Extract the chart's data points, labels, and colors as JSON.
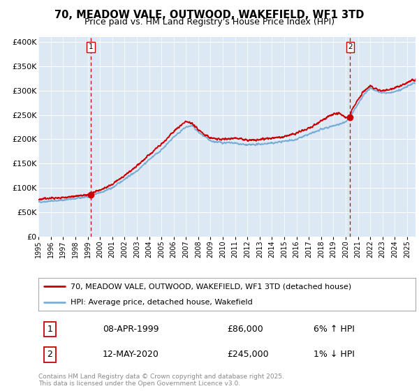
{
  "title": "70, MEADOW VALE, OUTWOOD, WAKEFIELD, WF1 3TD",
  "subtitle": "Price paid vs. HM Land Registry's House Price Index (HPI)",
  "title_fontsize": 10.5,
  "subtitle_fontsize": 9,
  "bg_color": "#dce9f5",
  "red_line_color": "#cc0000",
  "blue_line_color": "#7aadd4",
  "marker_color": "#cc0000",
  "vline_color": "#cc0000",
  "box_edge_color": "#cc0000",
  "legend_line1": "70, MEADOW VALE, OUTWOOD, WAKEFIELD, WF1 3TD (detached house)",
  "legend_line2": "HPI: Average price, detached house, Wakefield",
  "sale1_date": "08-APR-1999",
  "sale1_price": "£86,000",
  "sale1_hpi": "6% ↑ HPI",
  "sale2_date": "12-MAY-2020",
  "sale2_price": "£245,000",
  "sale2_hpi": "1% ↓ HPI",
  "footer": "Contains HM Land Registry data © Crown copyright and database right 2025.\nThis data is licensed under the Open Government Licence v3.0.",
  "ylim": [
    0,
    410000
  ],
  "yticks": [
    0,
    50000,
    100000,
    150000,
    200000,
    250000,
    300000,
    350000,
    400000
  ],
  "ytick_labels": [
    "£0",
    "£50K",
    "£100K",
    "£150K",
    "£200K",
    "£250K",
    "£300K",
    "£350K",
    "£400K"
  ],
  "sale1_year": 1999.27,
  "sale2_year": 2020.37,
  "sale1_price_val": 86000,
  "sale2_price_val": 245000,
  "xmin": 1995.0,
  "xmax": 2025.7
}
